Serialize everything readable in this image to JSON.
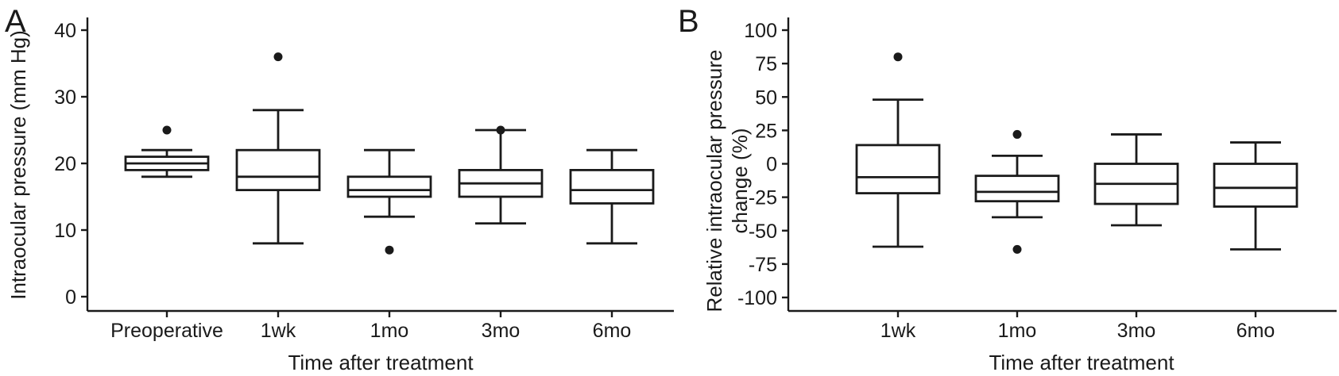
{
  "chart_data": [
    {
      "panel": "A",
      "type": "box",
      "xlabel": "Time after treatment",
      "ylabel": "Intraocular pressure (mm Hg)",
      "ylim": [
        0,
        40
      ],
      "yticks": [
        0,
        10,
        20,
        30,
        40
      ],
      "grid": false,
      "categories": [
        "Preoperative",
        "1wk",
        "1mo",
        "3mo",
        "6mo"
      ],
      "boxes": [
        {
          "min": 18,
          "q1": 19,
          "median": 20,
          "q3": 21,
          "max": 22,
          "outliers": [
            25
          ]
        },
        {
          "min": 8,
          "q1": 16,
          "median": 18,
          "q3": 22,
          "max": 28,
          "outliers": [
            36
          ]
        },
        {
          "min": 12,
          "q1": 15,
          "median": 16,
          "q3": 18,
          "max": 22,
          "outliers": [
            7
          ]
        },
        {
          "min": 11,
          "q1": 15,
          "median": 17,
          "q3": 19,
          "max": 25,
          "outliers": [
            25
          ]
        },
        {
          "min": 8,
          "q1": 14,
          "median": 16,
          "q3": 19,
          "max": 22,
          "outliers": []
        }
      ]
    },
    {
      "panel": "B",
      "type": "box",
      "xlabel": "Time after treatment",
      "ylabel": "Relative intraocular pressure change (%)",
      "ylabel_lines": [
        "Relative intraocular pressure",
        "change (%)"
      ],
      "ylim": [
        -100,
        100
      ],
      "yticks": [
        -100,
        -75,
        -50,
        -25,
        0,
        25,
        50,
        75,
        100
      ],
      "grid": false,
      "categories": [
        "1wk",
        "1mo",
        "3mo",
        "6mo"
      ],
      "boxes": [
        {
          "min": -62,
          "q1": -22,
          "median": -10,
          "q3": 14,
          "max": 48,
          "outliers": [
            80
          ]
        },
        {
          "min": -40,
          "q1": -28,
          "median": -21,
          "q3": -9,
          "max": 6,
          "outliers": [
            22,
            -64
          ]
        },
        {
          "min": -46,
          "q1": -30,
          "median": -15,
          "q3": 0,
          "max": 22,
          "outliers": []
        },
        {
          "min": -64,
          "q1": -32,
          "median": -18,
          "q3": 0,
          "max": 16,
          "outliers": []
        }
      ]
    }
  ]
}
